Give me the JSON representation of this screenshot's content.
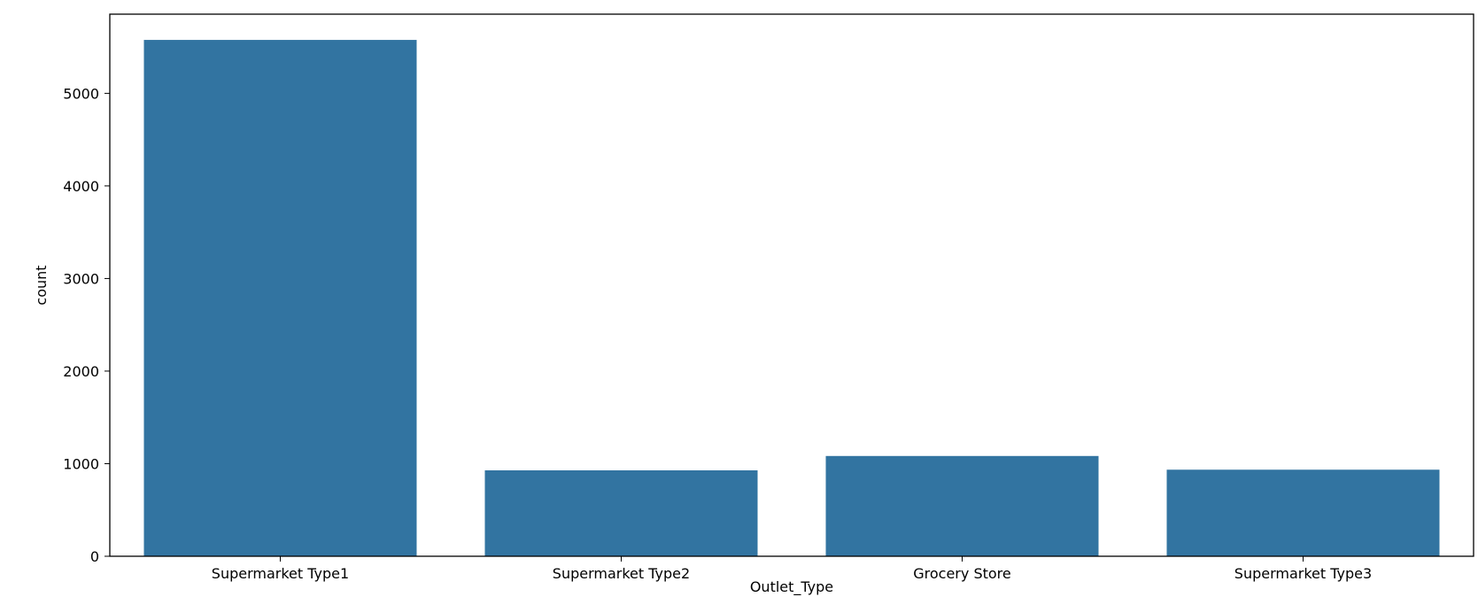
{
  "chart_data": {
    "type": "bar",
    "title": "",
    "xlabel": "Outlet_Type",
    "ylabel": "count",
    "categories": [
      "Supermarket Type1",
      "Supermarket Type2",
      "Grocery Store",
      "Supermarket Type3"
    ],
    "values": [
      5577,
      928,
      1083,
      935
    ],
    "ylim": [
      0,
      5855
    ],
    "yticks": [
      0,
      1000,
      2000,
      3000,
      4000,
      5000
    ],
    "grid": false,
    "bar_color": "#3274a1"
  }
}
